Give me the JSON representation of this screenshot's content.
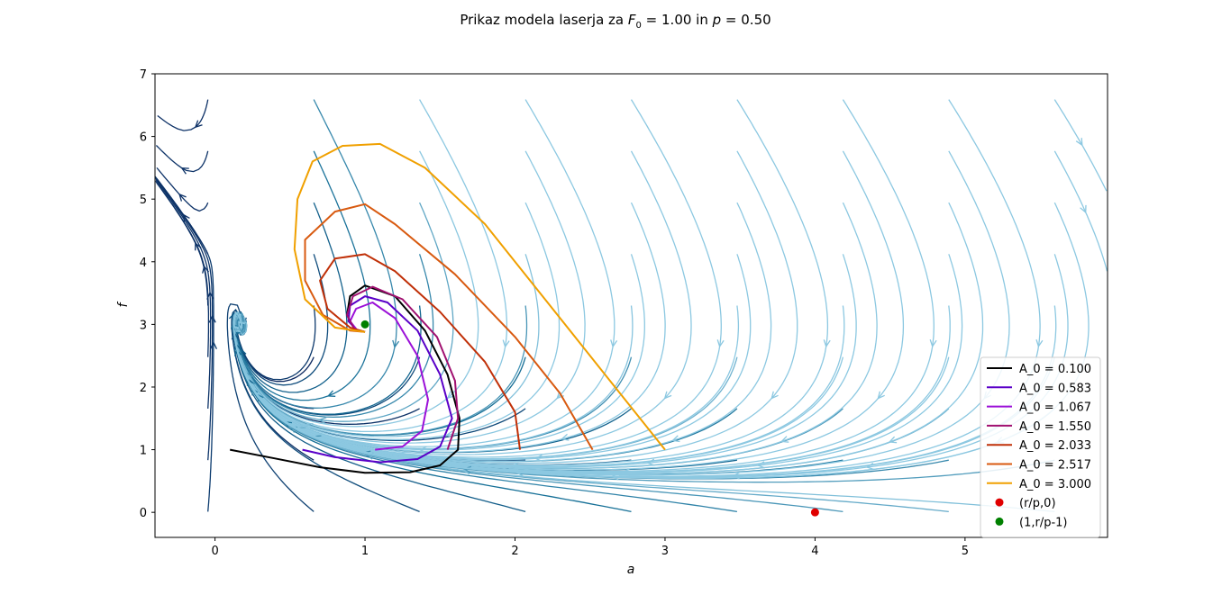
{
  "chart_data": {
    "type": "line",
    "title": "Prikaz modela laserja za F0 = 1.00 in p = 0.50",
    "title_parts": {
      "prefix": "Prikaz modela laserja za ",
      "var1": "F",
      "sub1": "0",
      "mid": " = 1.00 in ",
      "var2": "p",
      "suffix": " = 0.50"
    },
    "xlabel": "a",
    "ylabel": "f",
    "xlim": [
      -0.4,
      5.95
    ],
    "ylim": [
      -0.4,
      7.0
    ],
    "xticks": [
      "0",
      "1",
      "2",
      "3",
      "4",
      "5"
    ],
    "yticks": [
      "0",
      "1",
      "2",
      "3",
      "4",
      "5",
      "6",
      "7"
    ],
    "grid": false,
    "legend_position": "lower-right",
    "streamplot": {
      "shown": true,
      "description_colormap": "navy-to-lightblue by speed"
    },
    "series": [
      {
        "name": "A_0 = 0.100",
        "color": "#000000",
        "points": [
          [
            0.1,
            1.0
          ],
          [
            0.4,
            0.86
          ],
          [
            0.7,
            0.72
          ],
          [
            1.0,
            0.63
          ],
          [
            1.3,
            0.64
          ],
          [
            1.5,
            0.75
          ],
          [
            1.62,
            1.0
          ],
          [
            1.63,
            1.5
          ],
          [
            1.55,
            2.2
          ],
          [
            1.4,
            2.9
          ],
          [
            1.2,
            3.45
          ],
          [
            1.0,
            3.62
          ],
          [
            0.9,
            3.45
          ],
          [
            0.88,
            3.15
          ],
          [
            0.93,
            2.92
          ],
          [
            1.0,
            2.88
          ]
        ]
      },
      {
        "name": "A_0 = 0.583",
        "color": "#5a00c8",
        "points": [
          [
            0.583,
            1.0
          ],
          [
            0.8,
            0.88
          ],
          [
            1.1,
            0.8
          ],
          [
            1.35,
            0.85
          ],
          [
            1.5,
            1.05
          ],
          [
            1.58,
            1.5
          ],
          [
            1.5,
            2.2
          ],
          [
            1.35,
            2.9
          ],
          [
            1.15,
            3.35
          ],
          [
            1.0,
            3.45
          ],
          [
            0.9,
            3.3
          ],
          [
            0.89,
            3.05
          ],
          [
            0.95,
            2.9
          ],
          [
            1.0,
            2.88
          ]
        ]
      },
      {
        "name": "A_0 = 1.067",
        "color": "#9b10d8",
        "points": [
          [
            1.067,
            1.0
          ],
          [
            1.25,
            1.05
          ],
          [
            1.38,
            1.3
          ],
          [
            1.42,
            1.8
          ],
          [
            1.35,
            2.5
          ],
          [
            1.2,
            3.1
          ],
          [
            1.05,
            3.35
          ],
          [
            0.94,
            3.25
          ],
          [
            0.9,
            3.05
          ],
          [
            0.95,
            2.9
          ],
          [
            1.0,
            2.88
          ]
        ]
      },
      {
        "name": "A_0 = 1.550",
        "color": "#a01070",
        "points": [
          [
            1.55,
            1.0
          ],
          [
            1.62,
            1.5
          ],
          [
            1.6,
            2.1
          ],
          [
            1.48,
            2.8
          ],
          [
            1.25,
            3.4
          ],
          [
            1.05,
            3.6
          ],
          [
            0.92,
            3.45
          ],
          [
            0.88,
            3.15
          ],
          [
            0.93,
            2.92
          ],
          [
            1.0,
            2.88
          ]
        ]
      },
      {
        "name": "A_0 = 2.033",
        "color": "#c03008",
        "points": [
          [
            2.033,
            1.0
          ],
          [
            2.0,
            1.6
          ],
          [
            1.8,
            2.4
          ],
          [
            1.5,
            3.2
          ],
          [
            1.2,
            3.85
          ],
          [
            1.0,
            4.12
          ],
          [
            0.8,
            4.05
          ],
          [
            0.7,
            3.7
          ],
          [
            0.75,
            3.25
          ],
          [
            0.9,
            2.95
          ],
          [
            1.0,
            2.88
          ]
        ]
      },
      {
        "name": "A_0 = 2.517",
        "color": "#d85a10",
        "points": [
          [
            2.517,
            1.0
          ],
          [
            2.3,
            1.9
          ],
          [
            2.0,
            2.8
          ],
          [
            1.6,
            3.8
          ],
          [
            1.2,
            4.6
          ],
          [
            1.0,
            4.92
          ],
          [
            0.8,
            4.8
          ],
          [
            0.6,
            4.35
          ],
          [
            0.6,
            3.7
          ],
          [
            0.72,
            3.15
          ],
          [
            0.9,
            2.9
          ],
          [
            1.0,
            2.88
          ]
        ]
      },
      {
        "name": "A_0 = 3.000",
        "color": "#f0a000",
        "points": [
          [
            3.0,
            1.0
          ],
          [
            2.6,
            2.2
          ],
          [
            2.2,
            3.4
          ],
          [
            1.8,
            4.6
          ],
          [
            1.4,
            5.5
          ],
          [
            1.1,
            5.88
          ],
          [
            0.85,
            5.85
          ],
          [
            0.65,
            5.6
          ],
          [
            0.55,
            5.0
          ],
          [
            0.53,
            4.2
          ],
          [
            0.6,
            3.4
          ],
          [
            0.8,
            2.95
          ],
          [
            1.0,
            2.88
          ]
        ]
      }
    ],
    "points": [
      {
        "name": "(r/p,0)",
        "x": 4.0,
        "y": 0.0,
        "color": "#e00000"
      },
      {
        "name": "(1,r/p-1)",
        "x": 1.0,
        "y": 3.0,
        "color": "#008000"
      }
    ]
  }
}
